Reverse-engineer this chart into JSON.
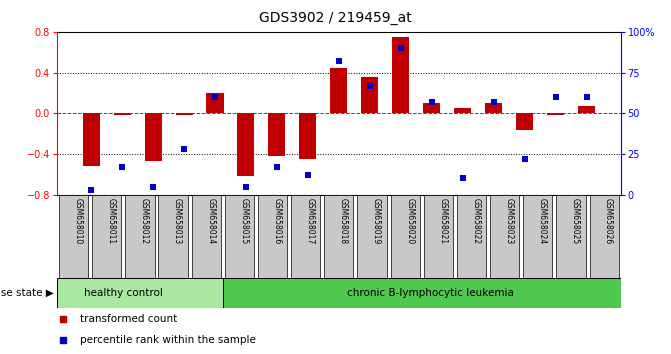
{
  "title": "GDS3902 / 219459_at",
  "samples": [
    "GSM658010",
    "GSM658011",
    "GSM658012",
    "GSM658013",
    "GSM658014",
    "GSM658015",
    "GSM658016",
    "GSM658017",
    "GSM658018",
    "GSM658019",
    "GSM658020",
    "GSM658021",
    "GSM658022",
    "GSM658023",
    "GSM658024",
    "GSM658025",
    "GSM658026"
  ],
  "red_bars": [
    -0.52,
    -0.02,
    -0.47,
    -0.02,
    0.2,
    -0.62,
    -0.42,
    -0.45,
    0.44,
    0.36,
    0.75,
    0.1,
    0.05,
    0.1,
    -0.16,
    -0.02,
    0.07
  ],
  "blue_squares_pct": [
    3,
    17,
    5,
    28,
    60,
    5,
    17,
    12,
    82,
    67,
    90,
    57,
    10,
    57,
    22,
    60,
    60
  ],
  "group1_label": "healthy control",
  "group2_label": "chronic B-lymphocytic leukemia",
  "group1_count": 5,
  "ylim_left": [
    -0.8,
    0.8
  ],
  "ylim_right": [
    0,
    100
  ],
  "yticks_left": [
    -0.8,
    -0.4,
    0.0,
    0.4,
    0.8
  ],
  "yticks_right": [
    0,
    25,
    50,
    75,
    100
  ],
  "ytick_labels_right": [
    "0",
    "25",
    "50",
    "75",
    "100%"
  ],
  "bar_color": "#C00000",
  "dot_color": "#0000CC",
  "tick_label_area_color": "#C8C8C8",
  "group1_color": "#A8E8A0",
  "group2_color": "#50C850",
  "disease_state_label": "disease state",
  "legend_bar_label": "transformed count",
  "legend_dot_label": "percentile rank within the sample",
  "bar_width": 0.55
}
